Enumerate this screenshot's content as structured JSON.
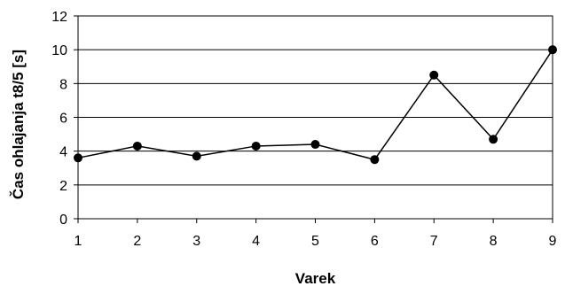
{
  "chart_data": {
    "type": "line",
    "title": "",
    "xlabel": "Varek",
    "ylabel": "Čas ohlajanja t8/5 [s]",
    "x": [
      1,
      2,
      3,
      4,
      5,
      6,
      7,
      8,
      9
    ],
    "series": [
      {
        "values": [
          3.6,
          4.3,
          3.7,
          4.3,
          4.4,
          3.5,
          8.5,
          4.7,
          10.0
        ]
      }
    ],
    "xlim": [
      1,
      9
    ],
    "ylim": [
      0,
      12
    ],
    "x_ticks": [
      "1",
      "2",
      "3",
      "4",
      "5",
      "6",
      "7",
      "8",
      "9"
    ],
    "y_ticks": [
      "0",
      "2",
      "4",
      "6",
      "8",
      "10",
      "12"
    ],
    "grid": "horizontal",
    "legend": "none",
    "colors": {
      "line": "#000000",
      "marker": "#000000",
      "grid": "#000000",
      "background": "#ffffff"
    }
  }
}
